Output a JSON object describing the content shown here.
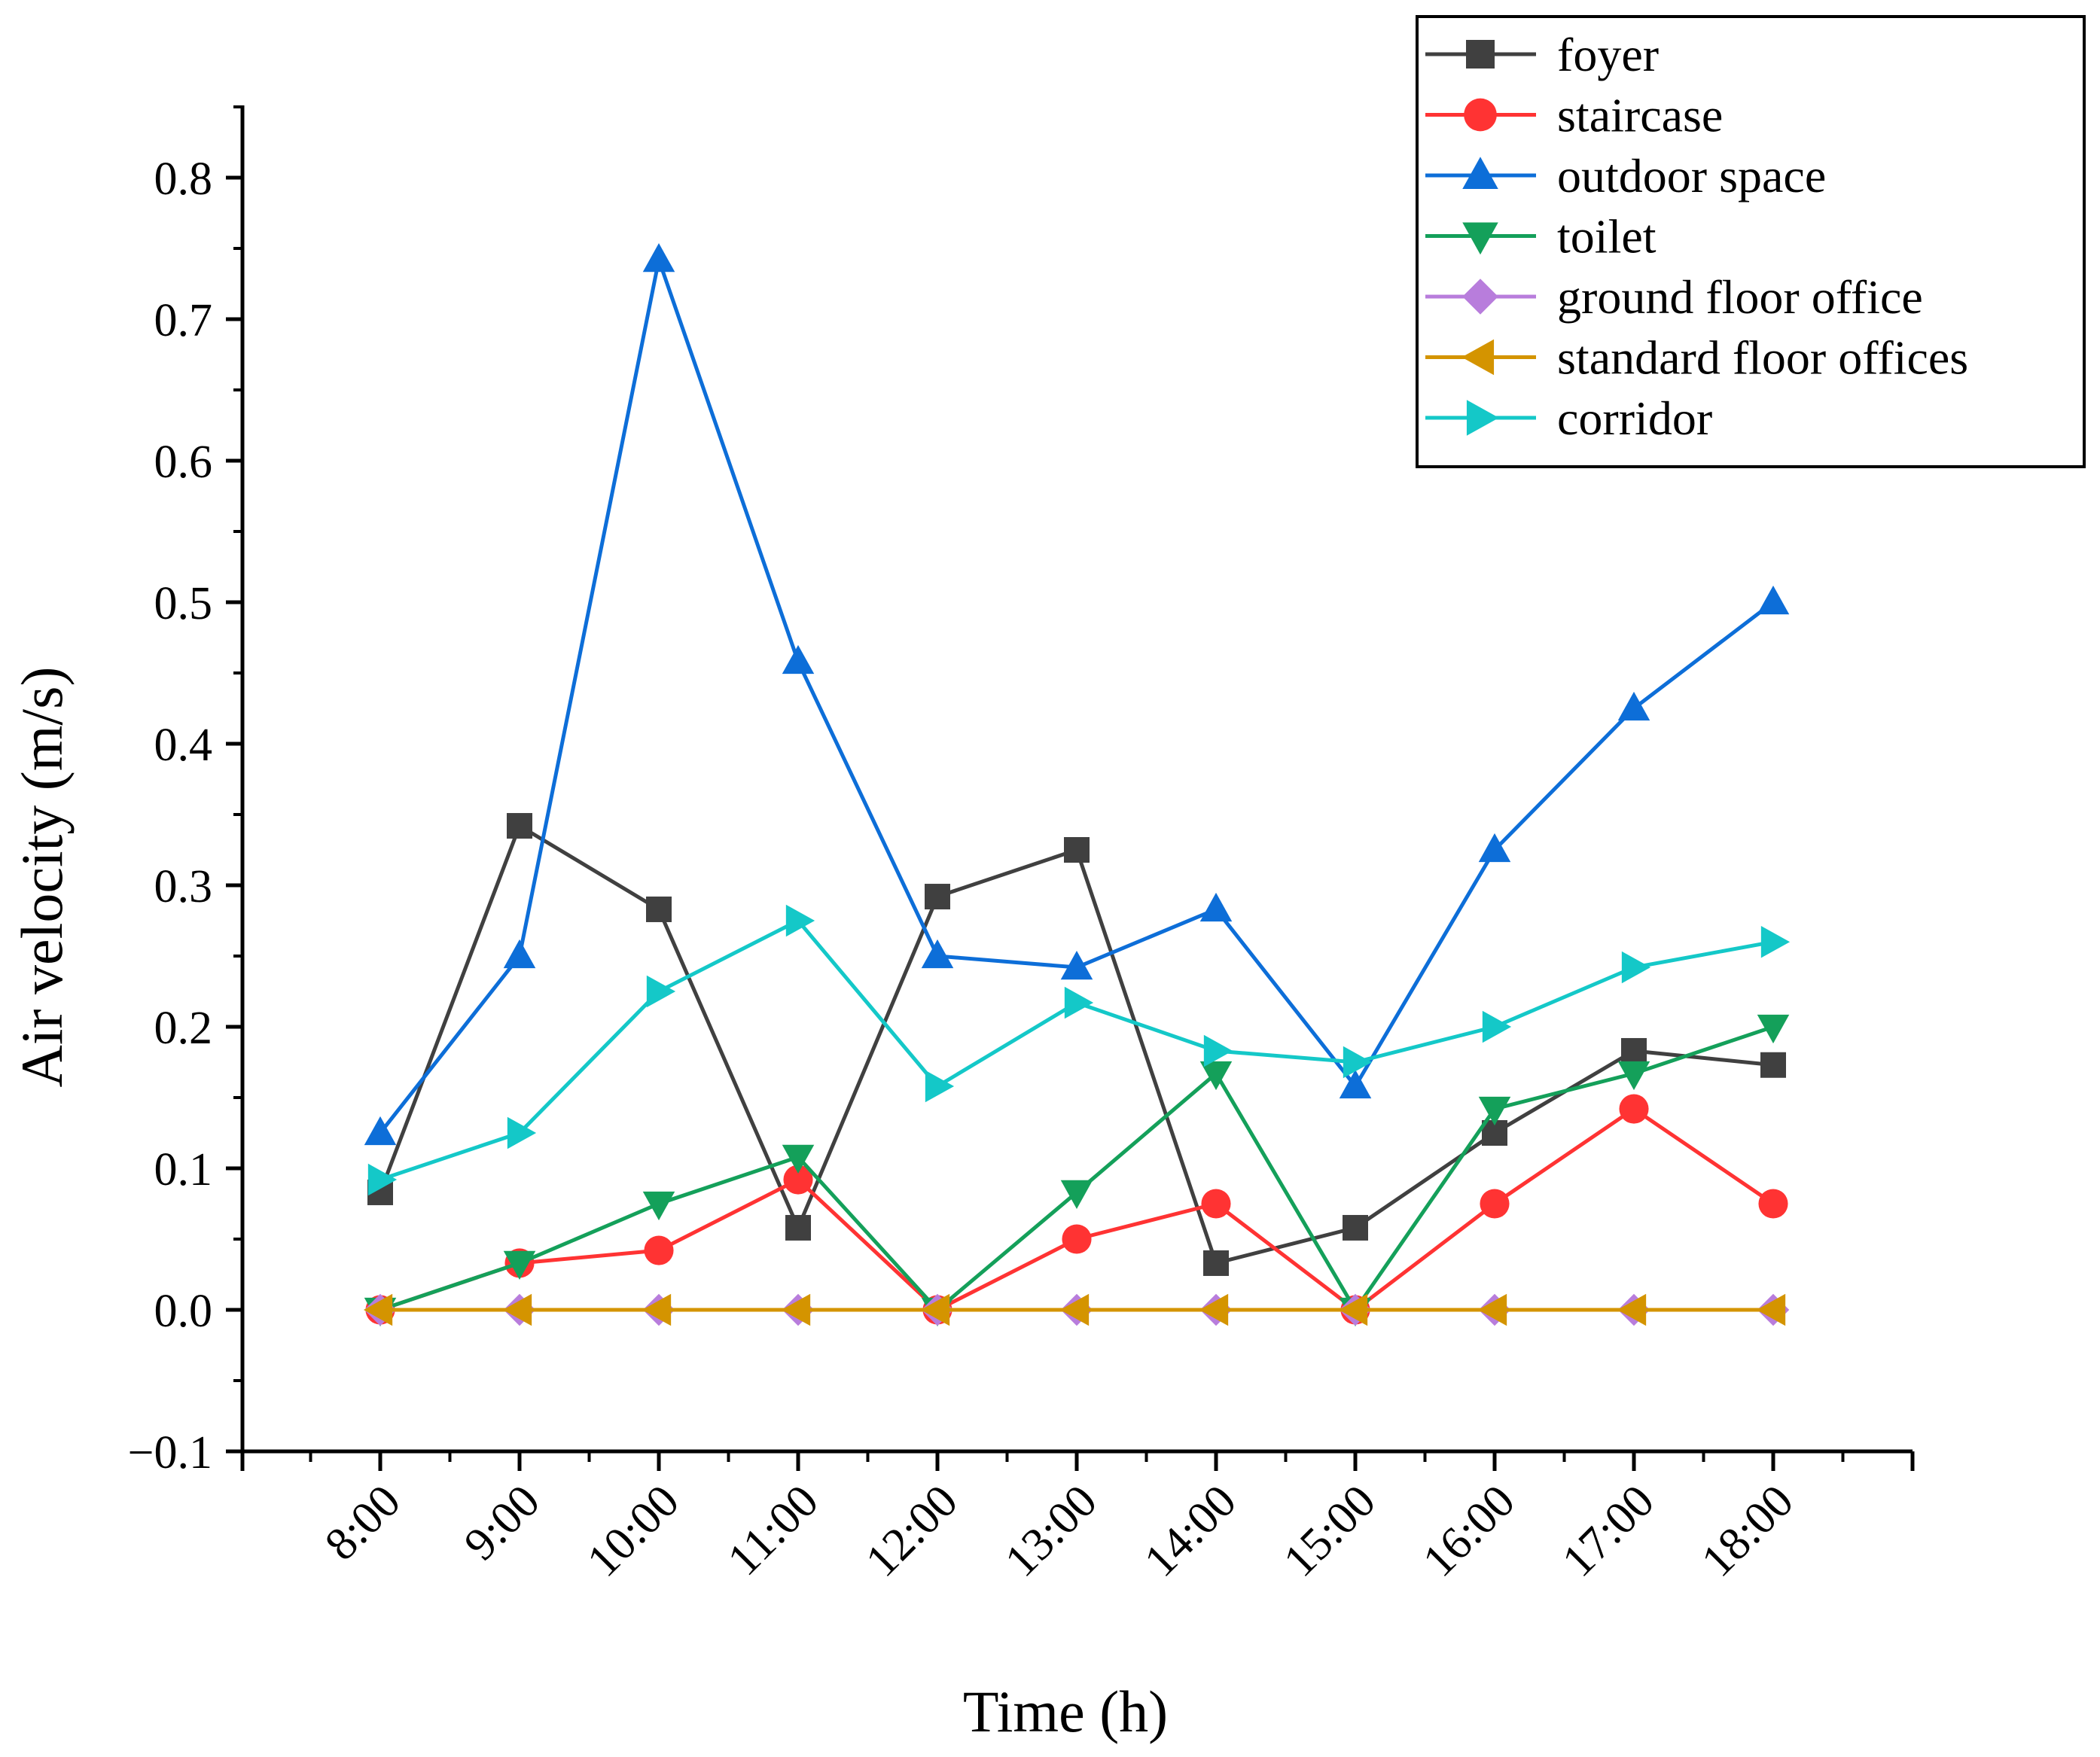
{
  "chart_data": {
    "type": "line",
    "title": "",
    "xlabel": "Time (h)",
    "ylabel": "Air velocity  (m/s)",
    "categories": [
      "8:00",
      "9:00",
      "10:00",
      "11:00",
      "12:00",
      "13:00",
      "14:00",
      "15:00",
      "16:00",
      "17:00",
      "18:00"
    ],
    "yticks": [
      -0.1,
      0.0,
      0.1,
      0.2,
      0.3,
      0.4,
      0.5,
      0.6,
      0.7,
      0.8
    ],
    "ytick_labels": [
      "−0.1",
      "0.0",
      "0.1",
      "0.2",
      "0.3",
      "0.4",
      "0.5",
      "0.6",
      "0.7",
      "0.8"
    ],
    "ylim": [
      -0.1,
      0.85
    ],
    "grid": false,
    "legend_position": "top-right",
    "series": [
      {
        "name": "foyer",
        "color": "#404040",
        "marker": "square",
        "values": [
          0.083,
          0.342,
          0.283,
          0.058,
          0.292,
          0.325,
          0.033,
          0.058,
          0.125,
          0.183,
          0.173
        ]
      },
      {
        "name": "staircase",
        "color": "#ff3333",
        "marker": "circle",
        "values": [
          0.0,
          0.033,
          0.042,
          0.092,
          0.0,
          0.05,
          0.075,
          0.0,
          0.075,
          0.142,
          0.075
        ]
      },
      {
        "name": "outdoor space",
        "color": "#0d6ed8",
        "marker": "triangle-up",
        "values": [
          0.125,
          0.25,
          0.742,
          0.458,
          0.25,
          0.242,
          0.283,
          0.158,
          0.325,
          0.425,
          0.5
        ]
      },
      {
        "name": "toilet",
        "color": "#14a05a",
        "marker": "triangle-down",
        "values": [
          0.0,
          0.033,
          0.075,
          0.108,
          0.0,
          0.083,
          0.167,
          0.0,
          0.142,
          0.167,
          0.2
        ]
      },
      {
        "name": "ground floor office",
        "color": "#b87ddc",
        "marker": "diamond",
        "values": [
          0,
          0,
          0,
          0,
          0,
          0,
          0,
          0,
          0,
          0,
          0
        ]
      },
      {
        "name": "standard floor offices",
        "color": "#d49400",
        "marker": "triangle-left",
        "values": [
          0,
          0,
          0,
          0,
          0,
          0,
          0,
          0,
          0,
          0,
          0
        ]
      },
      {
        "name": "corridor",
        "color": "#14c8c8",
        "marker": "triangle-right",
        "values": [
          0.092,
          0.125,
          0.225,
          0.275,
          0.158,
          0.217,
          0.183,
          0.175,
          0.2,
          0.242,
          0.26
        ]
      }
    ]
  }
}
